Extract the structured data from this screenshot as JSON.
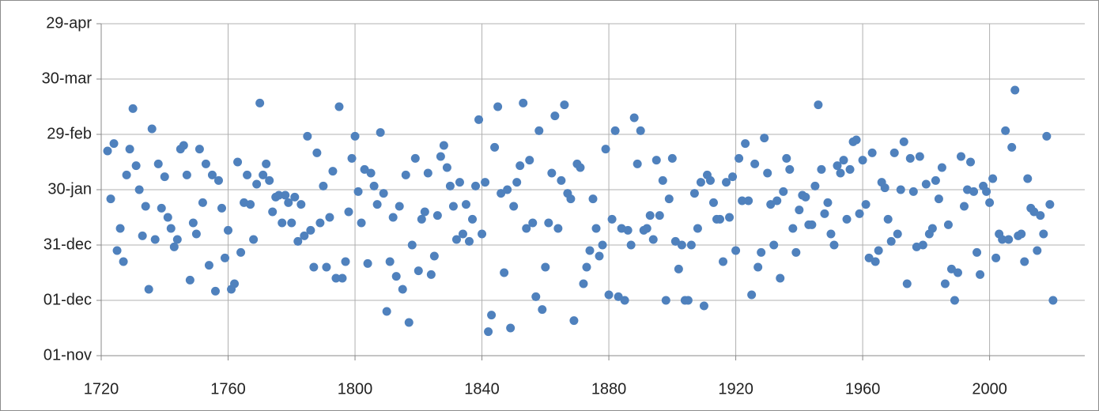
{
  "chart_data": {
    "type": "scatter",
    "x": [
      1722,
      1723,
      1724,
      1725,
      1726,
      1727,
      1728,
      1729,
      1730,
      1731,
      1732,
      1733,
      1734,
      1735,
      1736,
      1737,
      1738,
      1739,
      1740,
      1741,
      1742,
      1743,
      1744,
      1745,
      1746,
      1747,
      1748,
      1749,
      1750,
      1751,
      1752,
      1753,
      1754,
      1755,
      1756,
      1757,
      1758,
      1759,
      1760,
      1761,
      1762,
      1763,
      1764,
      1765,
      1766,
      1767,
      1768,
      1769,
      1770,
      1771,
      1772,
      1773,
      1774,
      1775,
      1776,
      1777,
      1778,
      1779,
      1780,
      1781,
      1782,
      1783,
      1784,
      1785,
      1786,
      1787,
      1788,
      1789,
      1790,
      1791,
      1792,
      1793,
      1794,
      1795,
      1796,
      1797,
      1798,
      1799,
      1800,
      1801,
      1802,
      1803,
      1804,
      1805,
      1806,
      1807,
      1808,
      1809,
      1810,
      1811,
      1812,
      1813,
      1814,
      1815,
      1816,
      1817,
      1818,
      1819,
      1820,
      1821,
      1822,
      1823,
      1824,
      1825,
      1826,
      1827,
      1828,
      1829,
      1830,
      1831,
      1832,
      1833,
      1834,
      1835,
      1836,
      1837,
      1838,
      1839,
      1840,
      1841,
      1842,
      1843,
      1844,
      1845,
      1846,
      1847,
      1848,
      1849,
      1850,
      1851,
      1852,
      1853,
      1854,
      1855,
      1856,
      1857,
      1858,
      1859,
      1860,
      1861,
      1862,
      1863,
      1864,
      1865,
      1866,
      1867,
      1868,
      1869,
      1870,
      1871,
      1872,
      1873,
      1874,
      1875,
      1876,
      1877,
      1878,
      1879,
      1880,
      1881,
      1882,
      1883,
      1884,
      1885,
      1886,
      1887,
      1888,
      1889,
      1890,
      1891,
      1892,
      1893,
      1894,
      1895,
      1896,
      1897,
      1898,
      1899,
      1900,
      1901,
      1902,
      1903,
      1904,
      1905,
      1906,
      1907,
      1908,
      1909,
      1910,
      1911,
      1912,
      1913,
      1914,
      1915,
      1916,
      1917,
      1918,
      1919,
      1920,
      1921,
      1922,
      1923,
      1924,
      1925,
      1926,
      1927,
      1928,
      1929,
      1930,
      1931,
      1932,
      1933,
      1934,
      1935,
      1936,
      1937,
      1938,
      1939,
      1940,
      1941,
      1942,
      1943,
      1944,
      1945,
      1946,
      1947,
      1948,
      1949,
      1950,
      1951,
      1952,
      1953,
      1954,
      1955,
      1956,
      1957,
      1958,
      1959,
      1960,
      1961,
      1962,
      1963,
      1964,
      1965,
      1966,
      1967,
      1968,
      1969,
      1970,
      1971,
      1972,
      1973,
      1974,
      1975,
      1976,
      1977,
      1978,
      1979,
      1980,
      1981,
      1982,
      1983,
      1984,
      1985,
      1986,
      1987,
      1988,
      1989,
      1990,
      1991,
      1992,
      1993,
      1994,
      1995,
      1996,
      1997,
      1998,
      1999,
      2000,
      2001,
      2002,
      2003,
      2004,
      2005,
      2006,
      2007,
      2008,
      2009,
      2010,
      2011,
      2012,
      2013,
      2014,
      2015,
      2016,
      2017,
      2018,
      2019,
      2020
    ],
    "series": [
      {
        "color": "#4f81bd",
        "values": [
          111,
          85,
          115,
          57,
          69,
          51,
          98,
          112,
          134,
          103,
          90,
          65,
          81,
          36,
          123,
          63,
          104,
          80,
          97,
          75,
          69,
          59,
          63,
          112,
          114,
          98,
          41,
          72,
          66,
          112,
          83,
          104,
          49,
          98,
          35,
          95,
          80,
          53,
          68,
          36,
          39,
          105,
          56,
          83,
          98,
          82,
          63,
          93,
          137,
          98,
          104,
          95,
          78,
          86,
          87,
          72,
          87,
          83,
          72,
          86,
          62,
          82,
          65,
          119,
          68,
          48,
          110,
          72,
          92,
          48,
          75,
          100,
          42,
          135,
          42,
          51,
          78,
          107,
          119,
          89,
          72,
          101,
          50,
          99,
          92,
          82,
          121,
          88,
          24,
          51,
          75,
          43,
          81,
          36,
          98,
          18,
          60,
          107,
          46,
          74,
          78,
          99,
          44,
          54,
          76,
          108,
          114,
          102,
          92,
          81,
          63,
          94,
          66,
          82,
          62,
          74,
          92,
          128,
          66,
          94,
          13,
          22,
          113,
          135,
          88,
          45,
          90,
          15,
          81,
          94,
          103,
          137,
          69,
          106,
          72,
          32,
          122,
          25,
          48,
          72,
          99,
          130,
          69,
          95,
          136,
          88,
          85,
          19,
          104,
          102,
          39,
          48,
          57,
          85,
          69,
          54,
          60,
          112,
          33,
          74,
          122,
          32,
          69,
          30,
          68,
          60,
          129,
          104,
          122,
          68,
          69,
          76,
          63,
          106,
          76,
          95,
          30,
          85,
          107,
          62,
          47,
          60,
          30,
          30,
          60,
          88,
          69,
          94,
          27,
          98,
          95,
          83,
          74,
          74,
          51,
          94,
          75,
          97,
          57,
          107,
          84,
          115,
          84,
          33,
          104,
          48,
          56,
          118,
          99,
          82,
          60,
          84,
          42,
          89,
          107,
          101,
          69,
          56,
          79,
          87,
          86,
          71,
          71,
          92,
          136,
          101,
          77,
          83,
          66,
          60,
          103,
          99,
          106,
          74,
          101,
          116,
          117,
          77,
          106,
          82,
          53,
          110,
          51,
          57,
          94,
          91,
          74,
          62,
          110,
          66,
          90,
          116,
          39,
          107,
          89,
          59,
          108,
          60,
          93,
          66,
          69,
          95,
          85,
          102,
          39,
          71,
          47,
          30,
          45,
          108,
          81,
          90,
          105,
          89,
          56,
          44,
          92,
          89,
          83,
          96,
          53,
          66,
          63,
          122,
          63,
          113,
          144,
          65,
          66,
          51,
          96,
          80,
          78,
          57,
          76,
          66,
          119,
          82,
          30
        ]
      }
    ],
    "xlim": [
      1720,
      2030
    ],
    "xticks": [
      1720,
      1760,
      1800,
      1840,
      1880,
      1920,
      1960,
      2000
    ],
    "ylim": [
      0,
      180
    ],
    "yticks": [
      {
        "value": 0,
        "label": "01-nov"
      },
      {
        "value": 30,
        "label": "01-dec"
      },
      {
        "value": 60,
        "label": "31-dec"
      },
      {
        "value": 90,
        "label": "30-jan"
      },
      {
        "value": 120,
        "label": "29-feb"
      },
      {
        "value": 150,
        "label": "30-mar"
      },
      {
        "value": 180,
        "label": "29-apr"
      }
    ],
    "grid": true
  }
}
